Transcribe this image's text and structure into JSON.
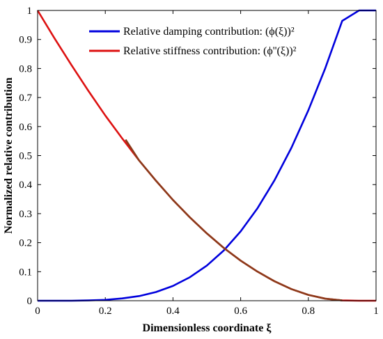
{
  "chart_data": {
    "type": "line",
    "xlabel": "Dimensionless coordinate ξ",
    "ylabel": "Normalized relative contribution",
    "xlim": [
      0,
      1
    ],
    "ylim": [
      0,
      1
    ],
    "x_ticks": [
      "0",
      "0.2",
      "0.4",
      "0.6",
      "0.8",
      "1"
    ],
    "y_ticks": [
      "0",
      "0.1",
      "0.2",
      "0.3",
      "0.4",
      "0.5",
      "0.6",
      "0.7",
      "0.8",
      "0.9",
      "1"
    ],
    "grid": false,
    "legend_position": "top-center",
    "x": [
      0,
      0.05,
      0.1,
      0.15,
      0.2,
      0.25,
      0.3,
      0.35,
      0.4,
      0.45,
      0.5,
      0.55,
      0.6,
      0.65,
      0.7,
      0.75,
      0.8,
      0.85,
      0.9,
      0.95,
      1.0
    ],
    "series": [
      {
        "name": "Relative damping contribution: (ϕ(ξ))²",
        "color": "#0000dd",
        "values": [
          0.0,
          0.0,
          0.0,
          0.001,
          0.003,
          0.008,
          0.016,
          0.03,
          0.051,
          0.081,
          0.121,
          0.173,
          0.239,
          0.319,
          0.415,
          0.527,
          0.656,
          0.801,
          0.964,
          1.0,
          1.0
        ]
      },
      {
        "name": "Relative stiffness contribution: (ϕ''(ξ))²",
        "color": "#dd1111",
        "values": [
          1.0,
          0.904,
          0.812,
          0.723,
          0.638,
          0.559,
          0.483,
          0.413,
          0.347,
          0.287,
          0.232,
          0.182,
          0.138,
          0.1,
          0.067,
          0.04,
          0.02,
          0.007,
          0.001,
          0.0,
          0.0
        ]
      }
    ],
    "overlap_color": "#8b3a1a",
    "overlap_start_x": 0.26
  }
}
